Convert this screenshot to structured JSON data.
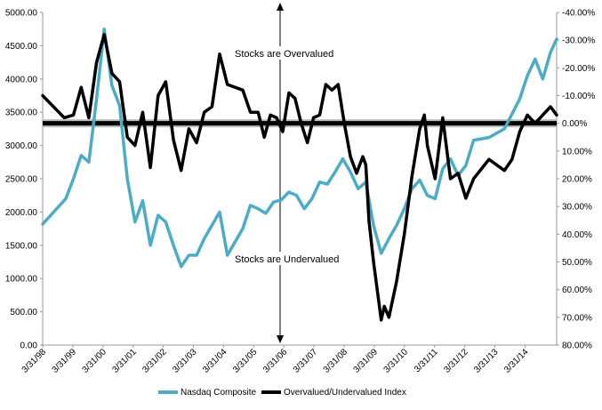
{
  "chart_data": {
    "type": "line",
    "title": "",
    "xlabel": "",
    "ylabel": "",
    "x_ticks": [
      "3/31/98",
      "3/31/99",
      "3/31/00",
      "3/31/01",
      "3/31/02",
      "3/31/03",
      "3/31/04",
      "3/31/05",
      "3/31/06",
      "3/31/07",
      "3/31/08",
      "3/31/09",
      "3/31/10",
      "3/31/11",
      "3/31/12",
      "3/31/13",
      "3/31/14"
    ],
    "x_range": [
      1998.0,
      2014.7
    ],
    "y_left": {
      "range": [
        0,
        5000
      ],
      "ticks": [
        "0.00",
        "500.00",
        "1000.00",
        "1500.00",
        "2000.00",
        "2500.00",
        "3000.00",
        "3500.00",
        "4000.00",
        "4500.00",
        "5000.00"
      ]
    },
    "y_right": {
      "range": [
        80,
        -40
      ],
      "inverted": true,
      "ticks": [
        "-40.00%",
        "-30.00%",
        "-20.00%",
        "-10.00%",
        "0.00%",
        "10.00%",
        "20.00%",
        "30.00%",
        "40.00%",
        "50.00%",
        "60.00%",
        "70.00%",
        "80.00%"
      ]
    },
    "grid": false,
    "legend_position": "bottom",
    "annotations": [
      {
        "text": "Stocks are Overvalued"
      },
      {
        "text": "Stocks are Undervalued"
      }
    ],
    "reference_line": {
      "axis": "right",
      "value": 0
    },
    "series": [
      {
        "name": "Nasdaq Composite",
        "axis": "left",
        "color": "#4BACC6",
        "points": [
          [
            1998.0,
            1820
          ],
          [
            1998.75,
            2200
          ],
          [
            1999.0,
            2500
          ],
          [
            1999.25,
            2850
          ],
          [
            1999.5,
            2750
          ],
          [
            1999.75,
            3700
          ],
          [
            2000.0,
            4750
          ],
          [
            2000.25,
            3900
          ],
          [
            2000.5,
            3600
          ],
          [
            2000.75,
            2500
          ],
          [
            2001.0,
            1850
          ],
          [
            2001.25,
            2170
          ],
          [
            2001.5,
            1500
          ],
          [
            2001.75,
            1950
          ],
          [
            2002.0,
            1850
          ],
          [
            2002.25,
            1500
          ],
          [
            2002.5,
            1180
          ],
          [
            2002.75,
            1350
          ],
          [
            2003.0,
            1350
          ],
          [
            2003.25,
            1600
          ],
          [
            2003.75,
            2000
          ],
          [
            2004.0,
            1350
          ],
          [
            2004.5,
            1750
          ],
          [
            2004.75,
            2100
          ],
          [
            2005.0,
            2050
          ],
          [
            2005.25,
            1980
          ],
          [
            2005.5,
            2150
          ],
          [
            2005.75,
            2180
          ],
          [
            2006.0,
            2300
          ],
          [
            2006.25,
            2250
          ],
          [
            2006.5,
            2050
          ],
          [
            2006.75,
            2200
          ],
          [
            2007.0,
            2450
          ],
          [
            2007.25,
            2420
          ],
          [
            2007.5,
            2600
          ],
          [
            2007.75,
            2800
          ],
          [
            2008.0,
            2600
          ],
          [
            2008.25,
            2350
          ],
          [
            2008.5,
            2450
          ],
          [
            2008.75,
            1800
          ],
          [
            2009.0,
            1380
          ],
          [
            2009.25,
            1600
          ],
          [
            2009.5,
            1800
          ],
          [
            2009.75,
            2050
          ],
          [
            2010.0,
            2350
          ],
          [
            2010.25,
            2480
          ],
          [
            2010.5,
            2250
          ],
          [
            2010.75,
            2200
          ],
          [
            2011.0,
            2650
          ],
          [
            2011.25,
            2800
          ],
          [
            2011.5,
            2550
          ],
          [
            2011.75,
            2700
          ],
          [
            2012.0,
            3080
          ],
          [
            2012.25,
            3100
          ],
          [
            2012.5,
            3120
          ],
          [
            2013.0,
            3250
          ],
          [
            2013.5,
            3700
          ],
          [
            2013.75,
            4050
          ],
          [
            2014.0,
            4300
          ],
          [
            2014.25,
            4000
          ],
          [
            2014.5,
            4400
          ],
          [
            2014.7,
            4600
          ]
        ]
      },
      {
        "name": "Overvalued/Undervalued Index",
        "axis": "right",
        "color": "#000000",
        "points": [
          [
            1998.0,
            -10
          ],
          [
            1998.7,
            -2
          ],
          [
            1999.0,
            -3
          ],
          [
            1999.25,
            -13
          ],
          [
            1999.5,
            -2
          ],
          [
            1999.75,
            -22
          ],
          [
            2000.0,
            -32
          ],
          [
            2000.25,
            -18
          ],
          [
            2000.5,
            -15
          ],
          [
            2000.75,
            5
          ],
          [
            2001.0,
            8
          ],
          [
            2001.25,
            -4
          ],
          [
            2001.5,
            16
          ],
          [
            2001.75,
            -10
          ],
          [
            2002.0,
            -15
          ],
          [
            2002.25,
            6
          ],
          [
            2002.5,
            17
          ],
          [
            2002.75,
            2
          ],
          [
            2003.0,
            7
          ],
          [
            2003.25,
            -4
          ],
          [
            2003.5,
            -6
          ],
          [
            2003.75,
            -25
          ],
          [
            2004.0,
            -14
          ],
          [
            2004.5,
            -12
          ],
          [
            2004.75,
            -4
          ],
          [
            2005.0,
            -4
          ],
          [
            2005.2,
            5
          ],
          [
            2005.4,
            -3
          ],
          [
            2005.6,
            -2
          ],
          [
            2005.8,
            3
          ],
          [
            2006.0,
            -11
          ],
          [
            2006.2,
            -9
          ],
          [
            2006.4,
            0
          ],
          [
            2006.6,
            7
          ],
          [
            2006.8,
            -2
          ],
          [
            2007.0,
            -3
          ],
          [
            2007.2,
            -14
          ],
          [
            2007.4,
            -12
          ],
          [
            2007.6,
            -14
          ],
          [
            2007.8,
            0
          ],
          [
            2008.0,
            12
          ],
          [
            2008.2,
            18
          ],
          [
            2008.4,
            12
          ],
          [
            2008.5,
            15
          ],
          [
            2008.6,
            35
          ],
          [
            2008.75,
            50
          ],
          [
            2009.0,
            71
          ],
          [
            2009.1,
            66
          ],
          [
            2009.25,
            70
          ],
          [
            2009.5,
            57
          ],
          [
            2009.75,
            40
          ],
          [
            2010.0,
            19
          ],
          [
            2010.25,
            2
          ],
          [
            2010.4,
            -3
          ],
          [
            2010.5,
            8
          ],
          [
            2010.75,
            20
          ],
          [
            2011.0,
            -2
          ],
          [
            2011.25,
            20
          ],
          [
            2011.5,
            18
          ],
          [
            2011.75,
            27
          ],
          [
            2012.0,
            20
          ],
          [
            2012.5,
            13
          ],
          [
            2013.0,
            17
          ],
          [
            2013.25,
            13
          ],
          [
            2013.5,
            3
          ],
          [
            2013.75,
            -3
          ],
          [
            2014.0,
            0
          ],
          [
            2014.25,
            -3
          ],
          [
            2014.5,
            -6
          ],
          [
            2014.7,
            -3
          ]
        ]
      }
    ]
  }
}
